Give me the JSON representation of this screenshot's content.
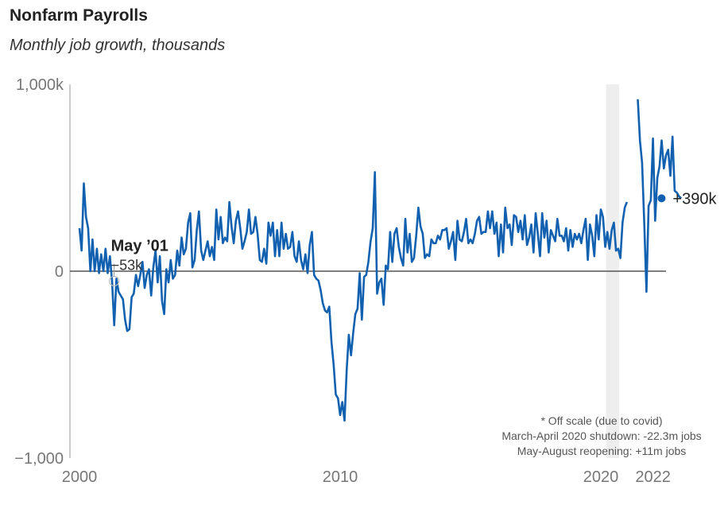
{
  "chart_data": {
    "type": "line",
    "title": "Nonfarm Payrolls",
    "subtitle": "Monthly job growth, thousands",
    "xlabel": "",
    "ylabel": "",
    "ylim": [
      -1000,
      1000
    ],
    "xlim": [
      2000,
      2022.5
    ],
    "y_ticks": [
      {
        "value": 1000,
        "label": "1,000k"
      },
      {
        "value": 0,
        "label": "0"
      },
      {
        "value": -1000,
        "label": "−1,000"
      }
    ],
    "x_ticks": [
      {
        "value": 2000,
        "label": "2000"
      },
      {
        "value": 2010,
        "label": "2010"
      },
      {
        "value": 2020,
        "label": "2020"
      },
      {
        "value": 2022,
        "label": "2022"
      }
    ],
    "shaded_region": [
      2020.2,
      2020.7
    ],
    "grid": false,
    "colors": {
      "line": "#1261b0",
      "zero": "#555555",
      "shade": "#eeeeee",
      "axis": "#999999"
    },
    "series": [
      {
        "name": "",
        "x_start": 2000.0,
        "x_step": 0.083333,
        "values": [
          230,
          110,
          470,
          290,
          230,
          0,
          170,
          0,
          120,
          -10,
          90,
          0,
          120,
          -10,
          80,
          -53,
          -290,
          -40,
          -110,
          -130,
          -150,
          -260,
          -320,
          -310,
          -140,
          -120,
          -20,
          -80,
          -20,
          50,
          -90,
          -20,
          10,
          -130,
          20,
          110,
          -60,
          80,
          -160,
          -230,
          10,
          -60,
          60,
          -40,
          -20,
          110,
          30,
          180,
          90,
          120,
          260,
          310,
          20,
          60,
          220,
          320,
          110,
          60,
          110,
          160,
          80,
          130,
          60,
          330,
          170,
          290,
          150,
          180,
          160,
          370,
          240,
          150,
          270,
          320,
          230,
          120,
          160,
          210,
          330,
          200,
          210,
          290,
          200,
          60,
          50,
          120,
          40,
          260,
          190,
          260,
          80,
          220,
          80,
          260,
          120,
          200,
          120,
          130,
          210,
          80,
          50,
          160,
          60,
          10,
          90,
          -10,
          140,
          210,
          -20,
          -40,
          -50,
          -100,
          -170,
          -210,
          -220,
          -190,
          -380,
          -500,
          -660,
          -680,
          -770,
          -700,
          -800,
          -530,
          -340,
          -450,
          -330,
          -230,
          -200,
          -10,
          -260,
          -30,
          -20,
          50,
          160,
          230,
          530,
          -120,
          -60,
          -40,
          -180,
          30,
          10,
          210,
          50,
          200,
          230,
          130,
          70,
          30,
          280,
          100,
          200,
          50,
          70,
          190,
          340,
          240,
          200,
          70,
          90,
          80,
          170,
          150,
          150,
          190,
          170,
          220,
          220,
          230,
          120,
          160,
          210,
          60,
          270,
          170,
          160,
          210,
          280,
          150,
          170,
          150,
          200,
          270,
          290,
          200,
          210,
          210,
          320,
          230,
          320,
          200,
          260,
          80,
          250,
          100,
          340,
          230,
          250,
          140,
          300,
          290,
          210,
          270,
          170,
          300,
          140,
          180,
          250,
          100,
          310,
          200,
          80,
          310,
          180,
          270,
          100,
          220,
          190,
          160,
          280,
          190,
          190,
          160,
          230,
          110,
          220,
          130,
          200,
          170,
          200,
          150,
          220,
          280,
          60,
          250,
          190,
          80,
          300,
          170,
          330,
          290,
          130,
          210,
          120,
          220,
          260,
          110,
          120,
          70,
          260,
          340,
          370,
          null,
          null,
          null,
          null,
          920,
          700,
          580,
          250,
          -110,
          350,
          380,
          710,
          270,
          500,
          560,
          700,
          550,
          620,
          650,
          510,
          720,
          430,
          420,
          400,
          390
        ]
      }
    ],
    "annotations": [
      {
        "month": "May ’01",
        "value": "−53k",
        "x": 2001.33,
        "y": -53
      },
      {
        "label": "+390k",
        "x": 2022.33,
        "y": 390
      }
    ],
    "footnote": [
      "* Off scale (due to covid)",
      "March-April 2020 shutdown: -22.3m jobs",
      "May-August reopening: +11m jobs"
    ]
  }
}
